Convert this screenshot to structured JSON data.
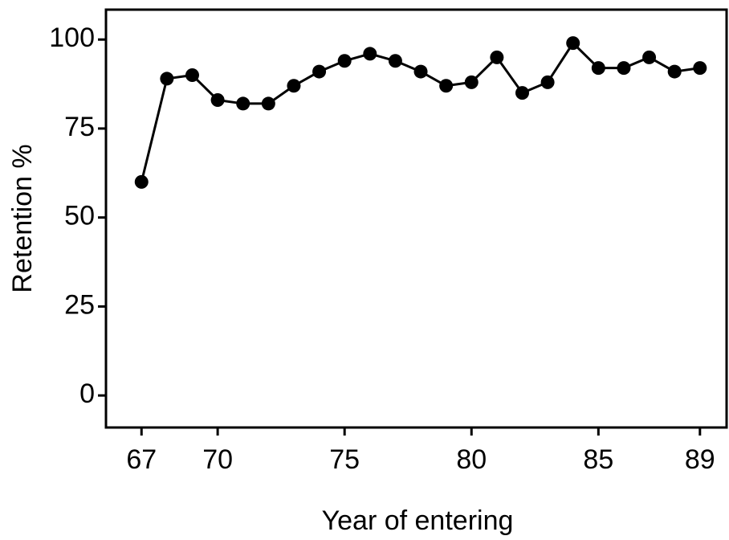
{
  "chart_data": {
    "type": "line",
    "x_label": "Year of entering",
    "y_label": "Retention %",
    "x": [
      67,
      68,
      69,
      70,
      71,
      72,
      73,
      74,
      75,
      76,
      77,
      78,
      79,
      80,
      81,
      82,
      83,
      84,
      85,
      86,
      87,
      88,
      89
    ],
    "series": [
      {
        "color": "#000000",
        "values": [
          60,
          89,
          90,
          83,
          82,
          82,
          87,
          91,
          94,
          96,
          94,
          91,
          87,
          88,
          95,
          85,
          88,
          99,
          92,
          92,
          95,
          91,
          92
        ]
      }
    ],
    "xlim": [
      65.6,
      90.05
    ],
    "xticks": [
      67,
      70,
      75,
      80,
      85,
      89
    ],
    "ylim": [
      -9,
      108.4
    ],
    "yticks": [
      0,
      25,
      50,
      75,
      100
    ]
  }
}
